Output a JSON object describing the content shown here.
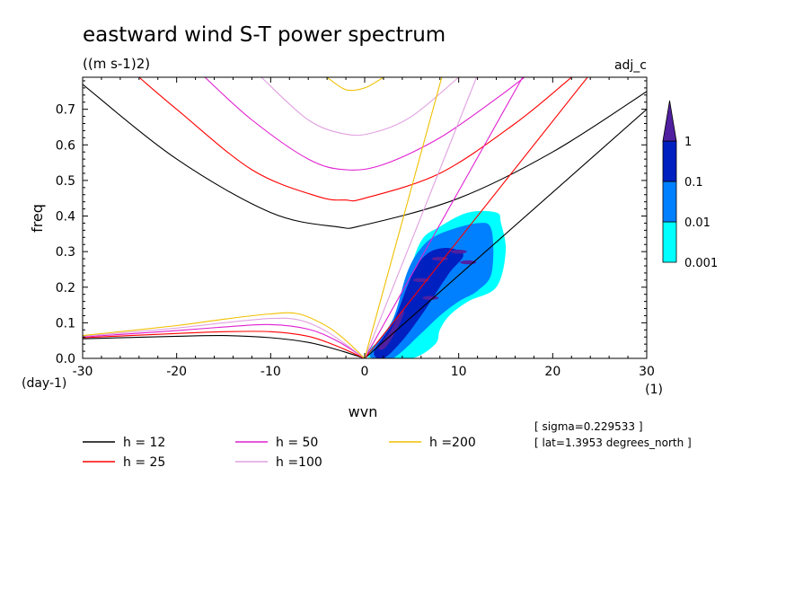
{
  "title": "eastward wind S-T power spectrum",
  "units": "((m s-1)2)",
  "corner_label": "adj_c",
  "info_lines": [
    "[ sigma=0.229533 ]",
    "[ lat=1.3953 degrees_north ]"
  ],
  "colors": {
    "h12": "#000000",
    "h25": "#ff0000",
    "h50": "#e020d0",
    "h100": "#e0a0e0",
    "h200": "#f0c000",
    "c0001": "#00ffff",
    "c001": "#0080ff",
    "c01": "#0020c0",
    "c1": "#5020a0"
  },
  "chart_data": {
    "type": "contour",
    "xlabel": "wvn",
    "x_unit": "(1)",
    "ylabel": "freq",
    "y_unit": "(day-1)",
    "xlim": [
      -30,
      30
    ],
    "ylim": [
      0,
      0.79
    ],
    "x_ticks": [
      -30,
      -20,
      -10,
      0,
      10,
      20,
      30
    ],
    "x_tick_labels": [
      "-30",
      "-20",
      "-10",
      "0",
      "10",
      "20",
      "30"
    ],
    "y_ticks": [
      0,
      0.1,
      0.2,
      0.3,
      0.4,
      0.5,
      0.6,
      0.7
    ],
    "y_tick_labels": [
      "0.0",
      "0.1",
      "0.2",
      "0.3",
      "0.4",
      "0.5",
      "0.6",
      "0.7"
    ],
    "colorbar": {
      "levels": [
        0.001,
        0.01,
        0.1,
        1
      ],
      "labels": [
        "0.001",
        "0.01",
        "0.1",
        "1"
      ],
      "colors": [
        "#00ffff",
        "#0080ff",
        "#0020c0",
        "#5020a0"
      ]
    },
    "dispersion_curves": [
      {
        "name": "h = 12",
        "color": "#000000",
        "kelvin_end": [
          30,
          0.7
        ],
        "ig_points": [
          [
            -30,
            0.77
          ],
          [
            -20,
            0.56
          ],
          [
            -10,
            0.41
          ],
          [
            -3,
            0.37
          ],
          [
            0,
            0.375
          ],
          [
            10,
            0.45
          ],
          [
            20,
            0.58
          ],
          [
            30,
            0.75
          ]
        ],
        "rossby_points": [
          [
            -30,
            0.055
          ],
          [
            -20,
            0.062
          ],
          [
            -15,
            0.064
          ],
          [
            -10,
            0.058
          ],
          [
            -6,
            0.045
          ],
          [
            -3,
            0.025
          ],
          [
            0,
            0
          ]
        ]
      },
      {
        "name": "h = 25",
        "color": "#ff0000",
        "kelvin_end": [
          23.7,
          0.79
        ],
        "ig_points": [
          [
            -24,
            0.79
          ],
          [
            -20,
            0.7
          ],
          [
            -12,
            0.53
          ],
          [
            -5,
            0.455
          ],
          [
            -2,
            0.445
          ],
          [
            0,
            0.45
          ],
          [
            8,
            0.52
          ],
          [
            16,
            0.66
          ],
          [
            22,
            0.79
          ]
        ],
        "rossby_points": [
          [
            -30,
            0.058
          ],
          [
            -20,
            0.07
          ],
          [
            -15,
            0.075
          ],
          [
            -10,
            0.075
          ],
          [
            -6,
            0.062
          ],
          [
            -3,
            0.035
          ],
          [
            0,
            0
          ]
        ]
      },
      {
        "name": "h = 50",
        "color": "#e020d0",
        "kelvin_end": [
          16.8,
          0.79
        ],
        "ig_points": [
          [
            -17,
            0.79
          ],
          [
            -12,
            0.67
          ],
          [
            -6,
            0.56
          ],
          [
            -2,
            0.53
          ],
          [
            2,
            0.545
          ],
          [
            8,
            0.62
          ],
          [
            14,
            0.73
          ],
          [
            17,
            0.79
          ]
        ],
        "rossby_points": [
          [
            -30,
            0.06
          ],
          [
            -20,
            0.078
          ],
          [
            -15,
            0.088
          ],
          [
            -10,
            0.095
          ],
          [
            -6,
            0.082
          ],
          [
            -3,
            0.05
          ],
          [
            0,
            0
          ]
        ]
      },
      {
        "name": "h =100",
        "color": "#e0a0e0",
        "kelvin_end": [
          11.9,
          0.79
        ],
        "ig_points": [
          [
            -11,
            0.79
          ],
          [
            -6,
            0.67
          ],
          [
            -2,
            0.63
          ],
          [
            1,
            0.635
          ],
          [
            5,
            0.68
          ],
          [
            10,
            0.79
          ]
        ],
        "rossby_points": [
          [
            -30,
            0.062
          ],
          [
            -20,
            0.085
          ],
          [
            -15,
            0.1
          ],
          [
            -10,
            0.112
          ],
          [
            -7,
            0.108
          ],
          [
            -4,
            0.075
          ],
          [
            0,
            0
          ]
        ]
      },
      {
        "name": "h =200",
        "color": "#f0c000",
        "kelvin_end": [
          8.2,
          0.79
        ],
        "ig_points": [
          [
            -4,
            0.79
          ],
          [
            -2,
            0.755
          ],
          [
            0,
            0.76
          ],
          [
            2,
            0.79
          ]
        ],
        "rossby_points": [
          [
            -30,
            0.064
          ],
          [
            -20,
            0.092
          ],
          [
            -15,
            0.11
          ],
          [
            -10,
            0.125
          ],
          [
            -7,
            0.125
          ],
          [
            -4,
            0.09
          ],
          [
            -2,
            0.05
          ],
          [
            0,
            0
          ]
        ]
      }
    ],
    "spectrum_regions": [
      {
        "level": "0.001",
        "color": "#00ffff",
        "points": [
          [
            0.3,
            0.02
          ],
          [
            3,
            0.09
          ],
          [
            4.5,
            0.22
          ],
          [
            6,
            0.33
          ],
          [
            8,
            0.37
          ],
          [
            11,
            0.41
          ],
          [
            14,
            0.41
          ],
          [
            14.5,
            0.38
          ],
          [
            15,
            0.3
          ],
          [
            14,
            0.2
          ],
          [
            11,
            0.16
          ],
          [
            9,
            0.12
          ],
          [
            8,
            0.08
          ],
          [
            7.5,
            0.04
          ],
          [
            5,
            0.0
          ],
          [
            1,
            0.0
          ]
        ]
      },
      {
        "level": "0.01",
        "color": "#0080ff",
        "points": [
          [
            0.7,
            0.02
          ],
          [
            3,
            0.11
          ],
          [
            4.5,
            0.24
          ],
          [
            6,
            0.31
          ],
          [
            8,
            0.35
          ],
          [
            12,
            0.38
          ],
          [
            13.5,
            0.36
          ],
          [
            13.5,
            0.24
          ],
          [
            12,
            0.19
          ],
          [
            10,
            0.16
          ],
          [
            8,
            0.12
          ],
          [
            6,
            0.07
          ],
          [
            3,
            0.0
          ],
          [
            1,
            0.0
          ]
        ]
      },
      {
        "level": "0.1",
        "color": "#0020c0",
        "points": [
          [
            1,
            0.02
          ],
          [
            3,
            0.1
          ],
          [
            4.5,
            0.2
          ],
          [
            5.5,
            0.26
          ],
          [
            7,
            0.3
          ],
          [
            9,
            0.31
          ],
          [
            10.5,
            0.29
          ],
          [
            9,
            0.24
          ],
          [
            7.5,
            0.18
          ],
          [
            6,
            0.12
          ],
          [
            4,
            0.05
          ],
          [
            2,
            0.0
          ]
        ]
      },
      {
        "level": "1",
        "color": "#5020a0",
        "points": [
          [
            1.5,
            0.03
          ],
          [
            2.8,
            0.08
          ],
          [
            3.8,
            0.13
          ],
          [
            4.2,
            0.13
          ],
          [
            3.4,
            0.08
          ],
          [
            2.2,
            0.03
          ]
        ]
      }
    ]
  }
}
